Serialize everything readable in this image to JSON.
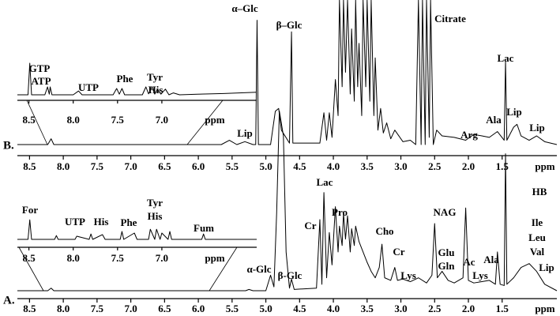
{
  "chart_data": [
    {
      "type": "line",
      "panel_label": "B.",
      "x_label": "ppm",
      "color": "#000000",
      "xlim": [
        8.68,
        0.69
      ],
      "ylim": [
        0,
        100
      ],
      "xticks": [
        8.5,
        {
          "value": 8,
          "label": "8.0"
        },
        7.5,
        {
          "value": 7,
          "label": "7.0"
        },
        6.5,
        {
          "value": 6,
          "label": "6.0"
        },
        5.5,
        {
          "value": 5,
          "label": "5.0"
        },
        4.5,
        {
          "value": 4,
          "label": "4.0"
        },
        3.5,
        {
          "value": 3,
          "label": "3.0"
        },
        2.5,
        {
          "value": 2,
          "label": "2.0"
        },
        1.5
      ],
      "x": [
        8.68,
        8.23,
        8.18,
        8.14,
        5.66,
        5.54,
        5.43,
        5.31,
        5.19,
        5.15,
        5.13,
        5.11,
        4.93,
        4.86,
        4.81,
        4.77,
        4.65,
        4.62,
        4.6,
        4.2,
        4.14,
        4.1,
        4.06,
        4.02,
        3.97,
        3.93,
        3.91,
        3.87,
        3.85,
        3.82,
        3.79,
        3.75,
        3.73,
        3.69,
        3.67,
        3.64,
        3.62,
        3.58,
        3.56,
        3.52,
        3.5,
        3.46,
        3.44,
        3.4,
        3.38,
        3.34,
        3.3,
        3.26,
        3.21,
        3.15,
        3.09,
        2.97,
        2.86,
        2.78,
        2.74,
        2.7,
        2.68,
        2.64,
        2.62,
        2.58,
        2.56,
        2.52,
        2.47,
        2.39,
        2.21,
        2.04,
        1.92,
        1.8,
        1.69,
        1.57,
        1.47,
        1.45,
        1.43,
        1.33,
        1.28,
        1.22,
        1.1,
        0.99,
        0.87,
        0.69
      ],
      "values": [
        0,
        0,
        4,
        0,
        0,
        3,
        0,
        2,
        0,
        0,
        86,
        0,
        0,
        23,
        25,
        10,
        1,
        78,
        1,
        1,
        22,
        3,
        22,
        5,
        45,
        20,
        100,
        40,
        100,
        50,
        100,
        35,
        80,
        30,
        100,
        40,
        70,
        20,
        100,
        40,
        100,
        30,
        100,
        20,
        60,
        10,
        25,
        8,
        15,
        4,
        10,
        2,
        3,
        0,
        100,
        0,
        100,
        0,
        100,
        5,
        100,
        0,
        10,
        6,
        5,
        3,
        7,
        6,
        5,
        9,
        3,
        58,
        3,
        12,
        14,
        6,
        3,
        6,
        2,
        0
      ],
      "annotations": [
        "α–Glc",
        "β–Glc",
        "Citrate",
        "Lac",
        "Lip",
        "Arg",
        "Ala",
        "Lip",
        "Lip"
      ]
    },
    {
      "type": "line",
      "x_label": "ppm",
      "color": "#000000",
      "xlim": [
        8.63,
        5.93
      ],
      "ylim": [
        0,
        100
      ],
      "xticks": [
        8.5,
        {
          "value": 8,
          "label": "8.0"
        },
        7.5,
        {
          "value": 7,
          "label": "7.0"
        }
      ],
      "x": [
        8.63,
        8.51,
        8.49,
        8.47,
        8.32,
        8.29,
        8.27,
        8.26,
        8.24,
        8.0,
        7.94,
        7.9,
        7.55,
        7.51,
        7.48,
        7.45,
        7.42,
        7.22,
        7.18,
        7.15,
        7.11,
        7.08,
        7.05,
        7.01,
        6.96,
        6.92,
        6.87,
        6.8,
        6.6,
        6.3,
        5.93
      ],
      "values": [
        0,
        0,
        100,
        0,
        0,
        25,
        2,
        25,
        0,
        0,
        12,
        0,
        0,
        20,
        2,
        20,
        0,
        0,
        25,
        3,
        25,
        2,
        18,
        2,
        18,
        0,
        6,
        0,
        2,
        4,
        8
      ],
      "annotations": [
        "GTP",
        "ATP",
        "UTP",
        "Phe",
        "Tyr",
        "His"
      ]
    },
    {
      "type": "line",
      "panel_label": "A.",
      "x_label": "ppm",
      "color": "#000000",
      "xlim": [
        8.68,
        0.69
      ],
      "ylim": [
        0,
        140
      ],
      "xticks": [
        8.5,
        {
          "value": 8,
          "label": "8.0"
        },
        7.5,
        {
          "value": 7,
          "label": "7.0"
        },
        6.5,
        {
          "value": 6,
          "label": "6.0"
        },
        5.5,
        {
          "value": 5,
          "label": "5.0"
        },
        4.5,
        {
          "value": 4,
          "label": "4.0"
        },
        3.5,
        {
          "value": 3,
          "label": "3.0"
        },
        2.5,
        {
          "value": 2,
          "label": "2.0"
        },
        1.5
      ],
      "x": [
        8.68,
        8.23,
        8.18,
        8.14,
        5.3,
        5.25,
        5.19,
        5.0,
        4.93,
        4.88,
        4.84,
        4.8,
        4.74,
        4.7,
        4.65,
        4.62,
        4.58,
        4.25,
        4.2,
        4.17,
        4.14,
        4.1,
        4.06,
        4.02,
        3.97,
        3.93,
        3.91,
        3.87,
        3.85,
        3.82,
        3.79,
        3.75,
        3.73,
        3.69,
        3.67,
        3.62,
        3.56,
        3.5,
        3.44,
        3.38,
        3.32,
        3.28,
        3.24,
        3.15,
        3.09,
        3.05,
        2.97,
        2.86,
        2.74,
        2.62,
        2.54,
        2.5,
        2.46,
        2.39,
        2.3,
        2.21,
        2.08,
        2.04,
        2.0,
        1.92,
        1.8,
        1.69,
        1.6,
        1.57,
        1.53,
        1.47,
        1.45,
        1.43,
        1.33,
        1.22,
        1.1,
        0.99,
        0.87,
        0.69
      ],
      "values": [
        0,
        0,
        2,
        0,
        0,
        1,
        0,
        0,
        12,
        3,
        60,
        139,
        120,
        30,
        2,
        9,
        1,
        2,
        55,
        5,
        76,
        10,
        45,
        20,
        65,
        30,
        50,
        35,
        60,
        40,
        58,
        30,
        48,
        35,
        50,
        38,
        30,
        22,
        15,
        10,
        18,
        36,
        10,
        8,
        18,
        8,
        9,
        7,
        10,
        6,
        12,
        52,
        10,
        15,
        8,
        6,
        10,
        64,
        8,
        6,
        7,
        8,
        5,
        30,
        5,
        4,
        106,
        5,
        10,
        18,
        21,
        15,
        5,
        0
      ],
      "annotations": [
        "α-Glc",
        "β-Glc",
        "Lac",
        "Cr",
        "Pro",
        "Cho",
        "Cr",
        "Lys",
        "NAG",
        "Glu",
        "Gln",
        "Ac",
        "Lys",
        "Ala",
        "HB",
        "Ile",
        "Leu",
        "Val",
        "Lip"
      ]
    },
    {
      "type": "line",
      "x_label": "ppm",
      "color": "#000000",
      "xlim": [
        8.63,
        5.93
      ],
      "ylim": [
        0,
        100
      ],
      "xticks": [
        8.5,
        {
          "value": 8,
          "label": "8.0"
        },
        7.5,
        {
          "value": 7,
          "label": "7.0"
        }
      ],
      "x": [
        8.63,
        8.51,
        8.49,
        8.47,
        8.21,
        8.19,
        8.17,
        7.98,
        7.96,
        7.82,
        7.8,
        7.78,
        7.67,
        7.64,
        7.47,
        7.45,
        7.43,
        7.31,
        7.28,
        7.15,
        7.13,
        7.08,
        7.06,
        7.02,
        7.0,
        6.93,
        6.91,
        6.89,
        6.55,
        6.53,
        6.51,
        5.93
      ],
      "values": [
        0,
        0,
        62,
        0,
        0,
        12,
        0,
        0,
        10,
        0,
        17,
        0,
        15,
        0,
        0,
        25,
        0,
        20,
        0,
        0,
        32,
        0,
        32,
        0,
        20,
        0,
        25,
        0,
        0,
        17,
        0,
        0
      ],
      "annotations": [
        "For",
        "UTP",
        "His",
        "Phe",
        "Tyr",
        "His",
        "Fum"
      ]
    }
  ]
}
